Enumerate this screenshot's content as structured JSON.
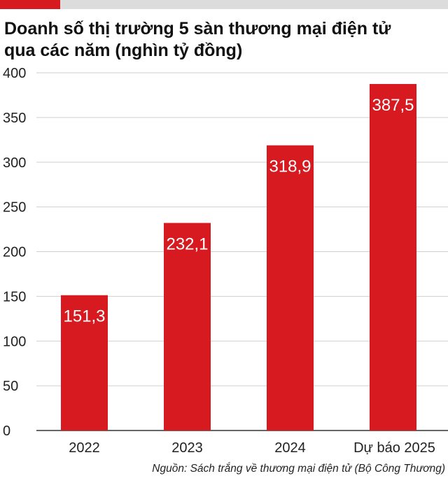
{
  "colors": {
    "accent": "#d71920",
    "bar": "#d71920",
    "grid": "#cfcfcf",
    "axis": "#333333"
  },
  "header": {
    "title_line1": "Doanh số thị trường 5 sàn thương mại điện tử",
    "title_line2": "qua các năm (nghìn tỷ đồng)"
  },
  "chart_data": {
    "type": "bar",
    "title": "Doanh số thị trường 5 sàn thương mại điện tử qua các năm (nghìn tỷ đồng)",
    "categories": [
      "2022",
      "2023",
      "2024",
      "Dự báo 2025"
    ],
    "values": [
      151.3,
      232.1,
      318.9,
      387.5
    ],
    "value_labels": [
      "151,3",
      "232,1",
      "318,9",
      "387,5"
    ],
    "ylim": [
      0,
      400
    ],
    "yticks": [
      0,
      50,
      100,
      150,
      200,
      250,
      300,
      350,
      400
    ],
    "grid": true,
    "xlabel": "",
    "ylabel": ""
  },
  "footer": {
    "source": "Nguồn: Sách trắng về thương mại điện tử (Bộ Công Thương)"
  }
}
